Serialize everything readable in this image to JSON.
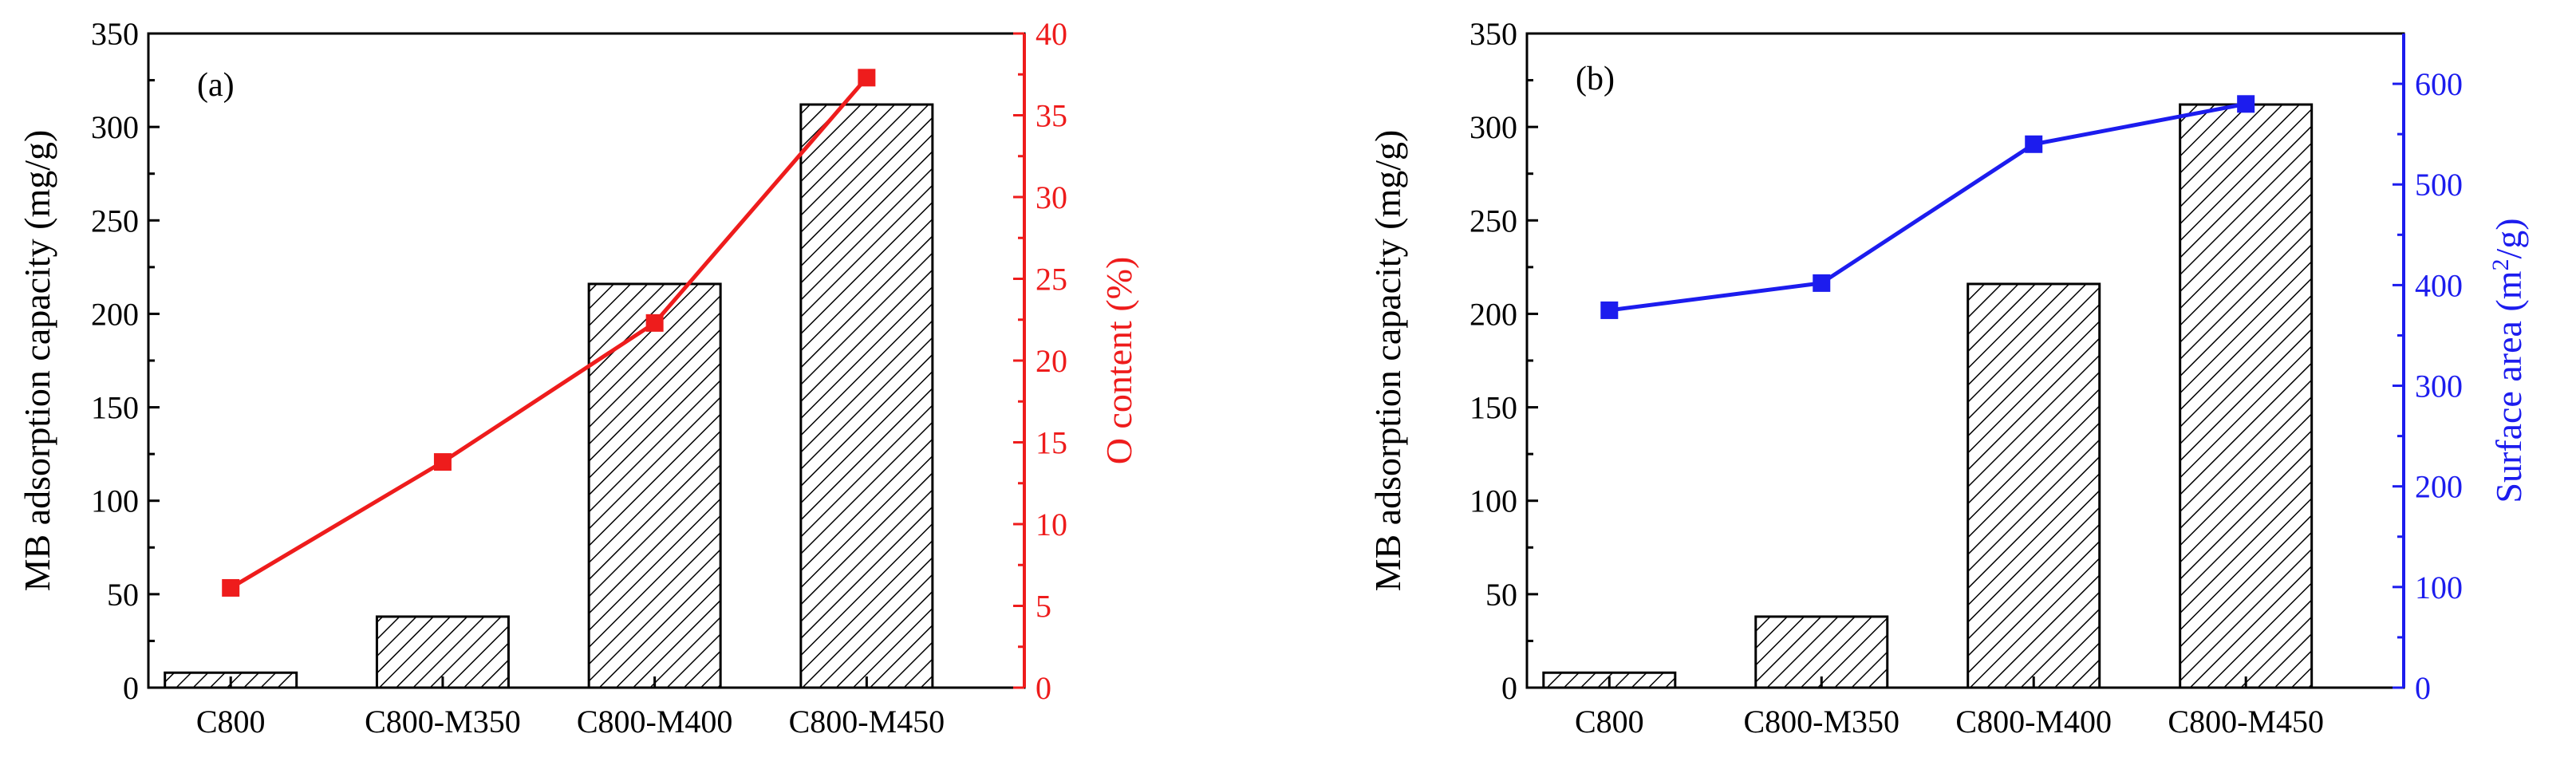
{
  "chart_data": [
    {
      "type": "bar",
      "panel_label": "(a)",
      "categories": [
        "C800",
        "C800-M350",
        "C800-M400",
        "C800-M450"
      ],
      "series": [
        {
          "name": "MB adsorption capacity",
          "axis": "left",
          "kind": "bar",
          "values": [
            8,
            38,
            216,
            312
          ]
        },
        {
          "name": "O content",
          "axis": "right",
          "kind": "line",
          "values": [
            6.1,
            13.8,
            22.3,
            37.3
          ]
        }
      ],
      "ylabel": "MB adsorption capacity (mg/g)",
      "ylim": [
        0,
        350
      ],
      "yticks": [
        0,
        50,
        100,
        150,
        200,
        250,
        300,
        350
      ],
      "y2label": "O content (%)",
      "y2lim": [
        0,
        40
      ],
      "y2ticks": [
        0,
        5,
        10,
        15,
        20,
        25,
        30,
        35,
        40
      ],
      "line_color": "#ee1c1c",
      "y2_axis_color": "#ee1c1c"
    },
    {
      "type": "bar",
      "panel_label": "(b)",
      "categories": [
        "C800",
        "C800-M350",
        "C800-M400",
        "C800-M450"
      ],
      "series": [
        {
          "name": "MB adsorption capacity",
          "axis": "left",
          "kind": "bar",
          "values": [
            8,
            38,
            216,
            312
          ]
        },
        {
          "name": "Surface area",
          "axis": "right",
          "kind": "line",
          "values": [
            375,
            402,
            540,
            580
          ]
        }
      ],
      "ylabel": "MB adsorption capacity (mg/g)",
      "ylim": [
        0,
        350
      ],
      "yticks": [
        0,
        50,
        100,
        150,
        200,
        250,
        300,
        350
      ],
      "y2label_prefix": "Surface area (m",
      "y2label_sup": "2",
      "y2label_suffix": "/g)",
      "y2lim": [
        0,
        650
      ],
      "y2ticks": [
        0,
        100,
        200,
        300,
        400,
        500,
        600
      ],
      "line_color": "#1c1cee",
      "y2_axis_color": "#1c1cee"
    }
  ]
}
